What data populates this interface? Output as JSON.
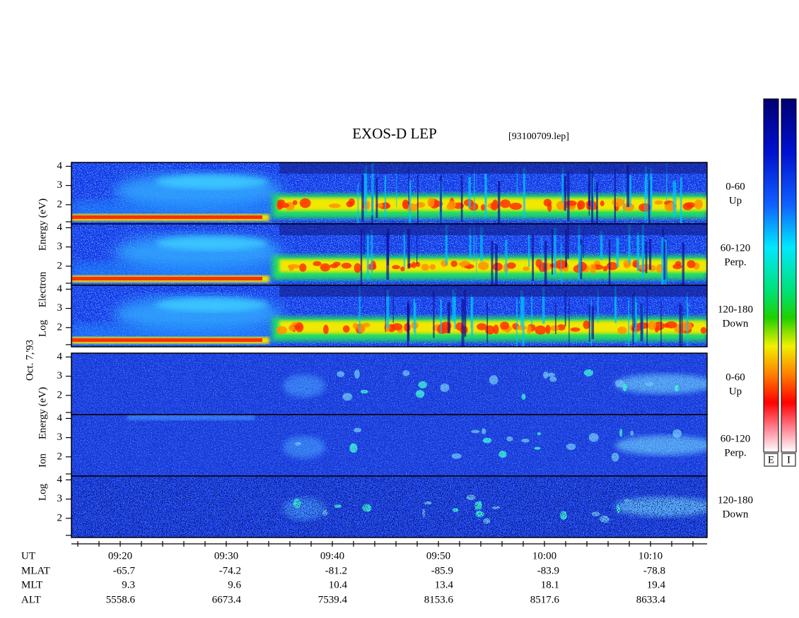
{
  "title": "EXOS-D LEP",
  "file": "[93100709.lep]",
  "date": "Oct. 7,'93",
  "groups": [
    {
      "words": [
        "Log",
        "Electron",
        "Energy (eV)"
      ]
    },
    {
      "words": [
        "Log",
        "Ion",
        "Energy (eV)"
      ]
    }
  ],
  "panels": [
    {
      "channel": "0-60",
      "direction": "Up",
      "ylim": [
        1,
        4.2
      ],
      "yticks": [
        2,
        3,
        4
      ]
    },
    {
      "channel": "60-120",
      "direction": "Perp.",
      "ylim": [
        1,
        4.2
      ],
      "yticks": [
        2,
        3,
        4
      ]
    },
    {
      "channel": "120-180",
      "direction": "Down",
      "ylim": [
        1,
        4.2
      ],
      "yticks": [
        2,
        3,
        4
      ]
    },
    {
      "channel": "0-60",
      "direction": "Up",
      "ylim": [
        1,
        4.2
      ],
      "yticks": [
        2,
        3,
        4
      ]
    },
    {
      "channel": "60-120",
      "direction": "Perp.",
      "ylim": [
        1,
        4.2
      ],
      "yticks": [
        2,
        3,
        4
      ]
    },
    {
      "channel": "120-180",
      "direction": "Down",
      "ylim": [
        1,
        4.2
      ],
      "yticks": [
        2,
        3,
        4
      ]
    }
  ],
  "ephemeris": [
    {
      "label": "UT",
      "values": [
        "09:20",
        "09:30",
        "09:40",
        "09:50",
        "10:00",
        "10:10"
      ]
    },
    {
      "label": "MLAT",
      "values": [
        "-65.7",
        "-74.2",
        "-81.2",
        "-85.9",
        "-83.9",
        "-78.8"
      ]
    },
    {
      "label": "MLT",
      "values": [
        "9.3",
        "9.6",
        "10.4",
        "13.4",
        "18.1",
        "19.4"
      ]
    },
    {
      "label": "ALT",
      "values": [
        "5558.6",
        "6673.4",
        "7539.4",
        "8153.6",
        "8517.6",
        "8633.4"
      ]
    }
  ],
  "colorbars": [
    {
      "label": "E"
    },
    {
      "label": "I"
    }
  ]
}
